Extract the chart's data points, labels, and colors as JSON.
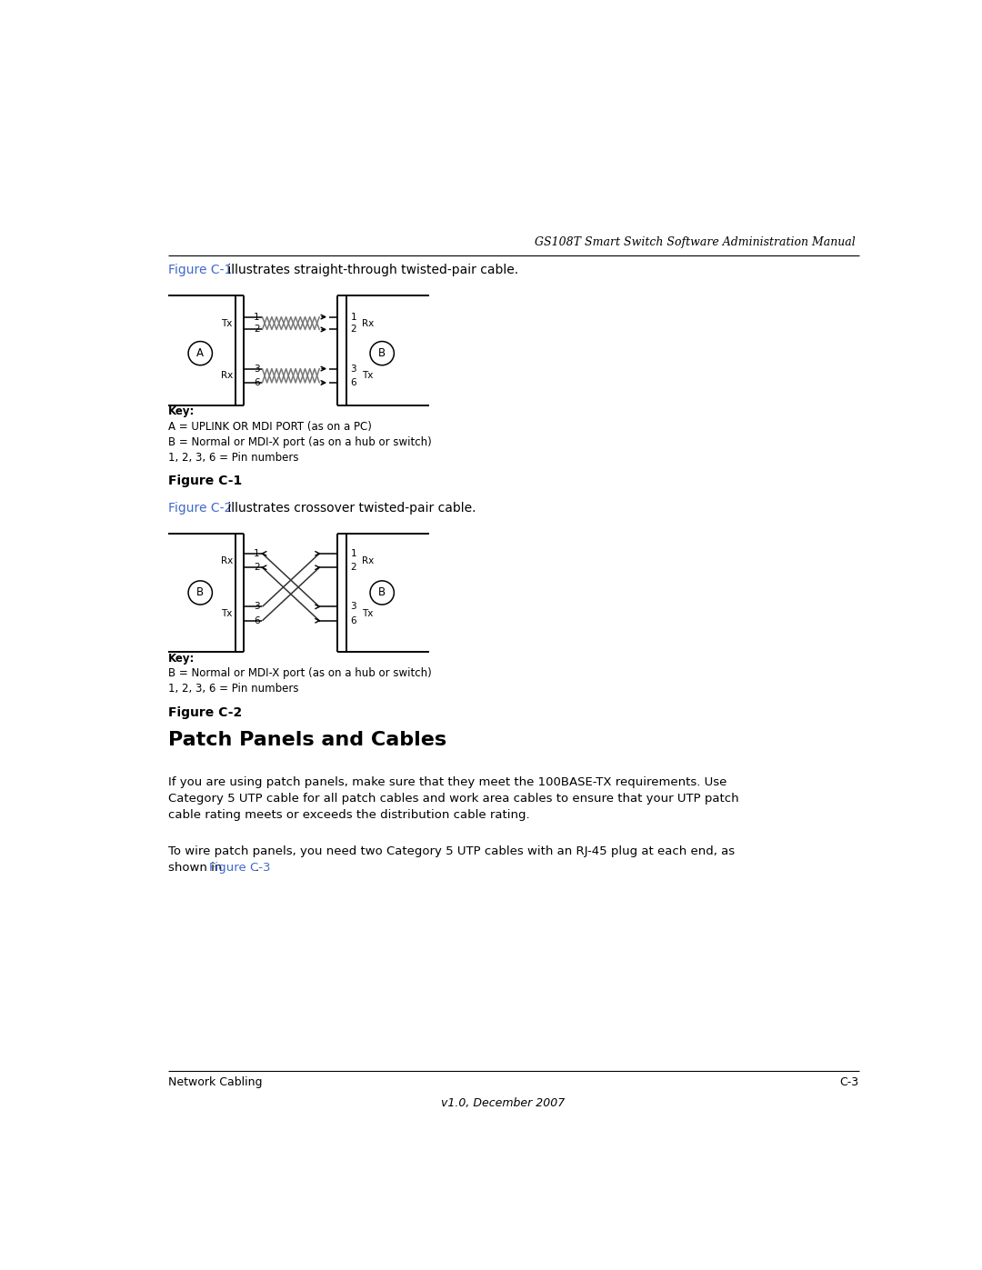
{
  "page_bg": "#ffffff",
  "header_text": "GS108T Smart Switch Software Administration Manual",
  "link_color": "#4169cc",
  "text_color": "#000000",
  "fig1_key_lines": [
    "Key:",
    "A = UPLINK OR MDI PORT (as on a PC)",
    "B = Normal or MDI-X port (as on a hub or switch)",
    "1, 2, 3, 6 = Pin numbers"
  ],
  "fig2_key_lines": [
    "Key:",
    "B = Normal or MDI-X port (as on a hub or switch)",
    "1, 2, 3, 6 = Pin numbers"
  ],
  "fig1_caption": "Figure C-1",
  "fig2_caption": "Figure C-2",
  "section_title": "Patch Panels and Cables",
  "para1_line1": "If you are using patch panels, make sure that they meet the 100BASE-TX requirements. Use",
  "para1_line2": "Category 5 UTP cable for all patch cables and work area cables to ensure that your UTP patch",
  "para1_line3": "cable rating meets or exceeds the distribution cable rating.",
  "para2_line1": "To wire patch panels, you need two Category 5 UTP cables with an RJ-45 plug at each end, as",
  "para2_line2a": "shown in ",
  "para2_line2b": "Figure C-3",
  "para2_line2c": ".",
  "footer_left": "Network Cabling",
  "footer_right": "C-3",
  "footer_version": "v1.0, December 2007"
}
